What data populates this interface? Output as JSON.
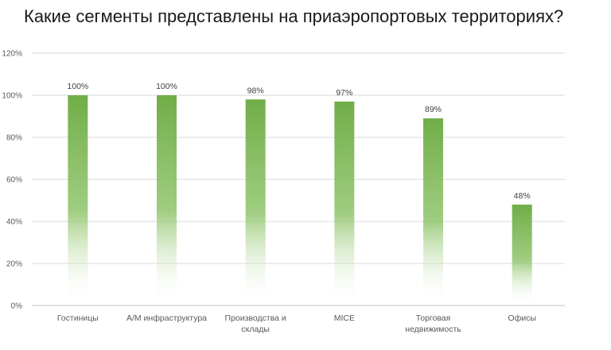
{
  "title": "Какие сегменты представлены на приаэропортовых территориях?",
  "colors": {
    "bar": "#70ad47",
    "grid": "#d9d9d9",
    "axis": "#bfbfbf"
  },
  "chart_data": {
    "type": "bar",
    "title": "Какие сегменты представлены на приаэропортовых территориях?",
    "categories": [
      [
        "Гостиницы"
      ],
      [
        "А/М инфраструктура"
      ],
      [
        "Производства и",
        "склады"
      ],
      [
        "MICE"
      ],
      [
        "Торговая",
        "недвижимость"
      ],
      [
        "Офисы"
      ]
    ],
    "values": [
      100,
      100,
      98,
      97,
      89,
      48
    ],
    "value_labels": [
      "100%",
      "100%",
      "98%",
      "97%",
      "89%",
      "48%"
    ],
    "yticks": [
      "0%",
      "20%",
      "40%",
      "60%",
      "80%",
      "100%",
      "120%"
    ],
    "ylim": [
      0,
      120
    ],
    "grid": true,
    "legend": "none"
  }
}
